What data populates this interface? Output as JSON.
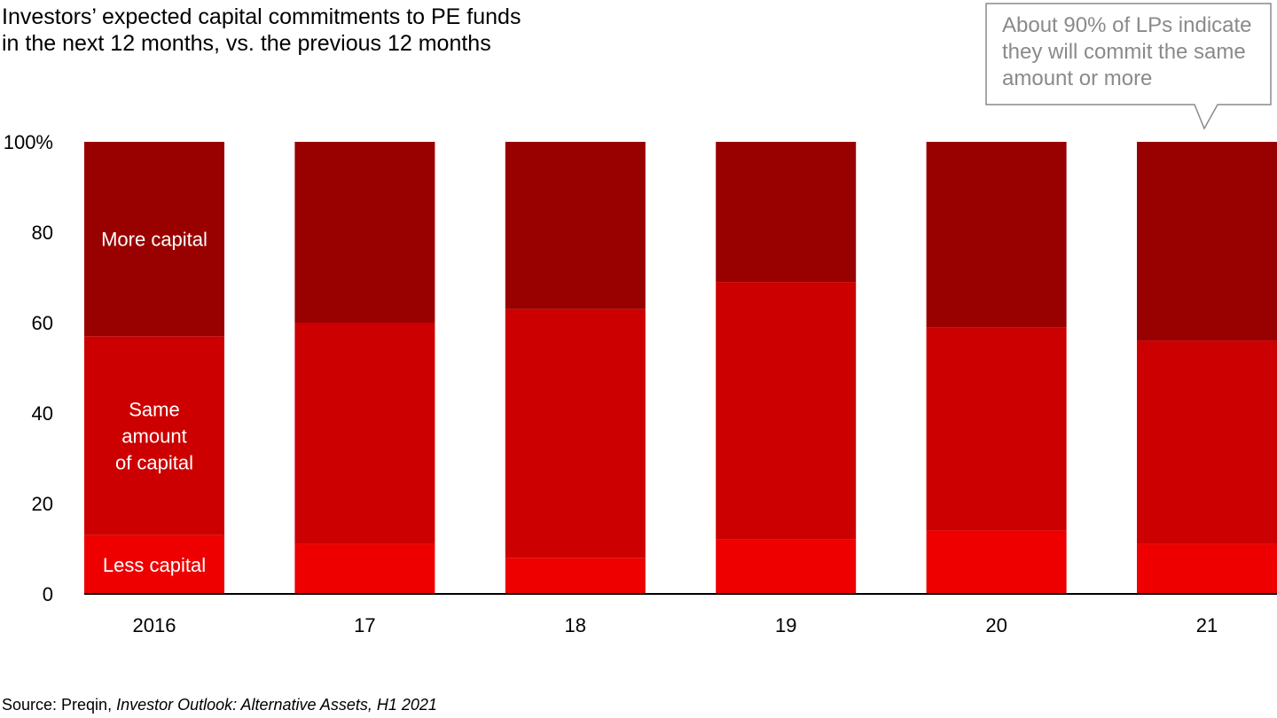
{
  "chart_data": {
    "type": "bar",
    "stacked": true,
    "title": "Investors’ expected capital commitments to PE funds in the next 12 months, vs. the previous 12 months",
    "title_lines": [
      "Investors’ expected capital commitments to PE funds",
      "in the next 12 months, vs. the previous 12 months"
    ],
    "categories": [
      "2016",
      "17",
      "18",
      "19",
      "20",
      "21"
    ],
    "series": [
      {
        "name": "Less capital",
        "color": "#ee0000",
        "values": [
          13,
          11,
          8,
          12,
          14,
          11
        ]
      },
      {
        "name": "Same amount of capital",
        "label_lines": [
          "Same",
          "amount",
          "of capital"
        ],
        "color": "#cc0000",
        "values": [
          44,
          49,
          55,
          57,
          45,
          45
        ]
      },
      {
        "name": "More capital",
        "color": "#990000",
        "values": [
          43,
          40,
          37,
          31,
          41,
          44
        ]
      }
    ],
    "ylim": [
      0,
      100
    ],
    "yticks": [
      0,
      20,
      40,
      60,
      80,
      100
    ],
    "ytick_labels": [
      "0",
      "20",
      "40",
      "60",
      "80",
      "100%"
    ],
    "xlabel": "",
    "ylabel": "",
    "grid": false,
    "annotation": {
      "text": "About 90% of LPs indicate they will commit the same amount or more",
      "lines": [
        "About 90% of LPs indicate",
        "they will commit the same",
        "amount or more"
      ],
      "target_category": "21"
    }
  },
  "source": {
    "prefix": "Source: Preqin, ",
    "italic": "Investor Outlook: Alternative Assets, H1 2021"
  }
}
